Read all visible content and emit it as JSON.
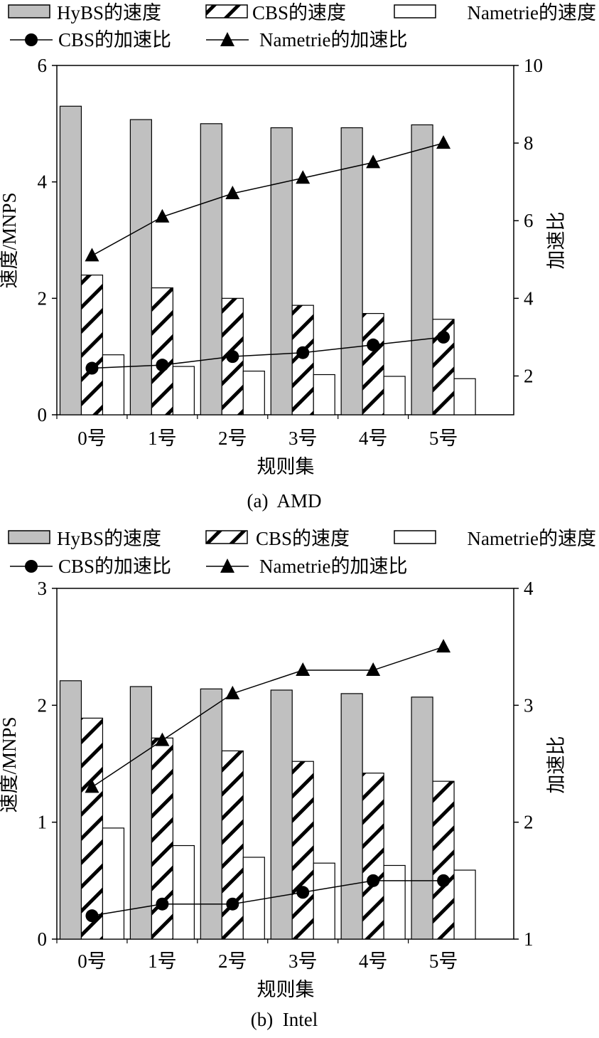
{
  "chart_data": [
    {
      "type": "bar",
      "caption": "(a)  AMD",
      "xlabel": "规则集",
      "ylabel": "速度/MNPS",
      "y2label": "加速比",
      "categories": [
        "0号",
        "1号",
        "2号",
        "3号",
        "4号",
        "5号"
      ],
      "ylim": [
        0,
        6
      ],
      "yticks": [
        "0",
        "2",
        "4",
        "6"
      ],
      "y2lim": [
        1,
        10
      ],
      "y2ticks": [
        "2",
        "4",
        "6",
        "8",
        "10"
      ],
      "legend": {
        "hybs_speed": "HyBS的速度",
        "cbs_speed": "CBS的速度",
        "nametrie_speed": "Nametrie的速度",
        "cbs_ratio": "CBS的加速比",
        "nametrie_ratio": "Nametrie的加速比"
      },
      "series": [
        {
          "name": "HyBS的速度",
          "style": "gray-bar",
          "axis": "left",
          "values": [
            5.3,
            5.07,
            5.0,
            4.93,
            4.93,
            4.98
          ]
        },
        {
          "name": "CBS的速度",
          "style": "hatched-bar",
          "axis": "left",
          "values": [
            2.4,
            2.18,
            2.0,
            1.88,
            1.74,
            1.64
          ]
        },
        {
          "name": "Nametrie的速度",
          "style": "white-bar",
          "axis": "left",
          "values": [
            1.03,
            0.83,
            0.75,
            0.69,
            0.66,
            0.62
          ]
        },
        {
          "name": "CBS的加速比",
          "style": "circle-line",
          "axis": "right",
          "values": [
            2.2,
            2.28,
            2.5,
            2.6,
            2.8,
            3.0
          ]
        },
        {
          "name": "Nametrie的加速比",
          "style": "triangle-line",
          "axis": "right",
          "values": [
            5.1,
            6.1,
            6.7,
            7.1,
            7.5,
            8.0
          ]
        }
      ]
    },
    {
      "type": "bar",
      "caption": "(b)  Intel",
      "xlabel": "规则集",
      "ylabel": "速度/MNPS",
      "y2label": "加速比",
      "categories": [
        "0号",
        "1号",
        "2号",
        "3号",
        "4号",
        "5号"
      ],
      "ylim": [
        0,
        3
      ],
      "yticks": [
        "0",
        "1",
        "2",
        "3"
      ],
      "y2lim": [
        1,
        4
      ],
      "y2ticks": [
        "1",
        "2",
        "3",
        "4"
      ],
      "legend": {
        "hybs_speed": "HyBS的速度",
        "cbs_speed": "CBS的速度",
        "nametrie_speed": "Nametrie的速度",
        "cbs_ratio": "CBS的加速比",
        "nametrie_ratio": "Nametrie的加速比"
      },
      "series": [
        {
          "name": "HyBS的速度",
          "style": "gray-bar",
          "axis": "left",
          "values": [
            2.21,
            2.16,
            2.14,
            2.13,
            2.1,
            2.07
          ]
        },
        {
          "name": "CBS的速度",
          "style": "hatched-bar",
          "axis": "left",
          "values": [
            1.89,
            1.72,
            1.61,
            1.52,
            1.42,
            1.35
          ]
        },
        {
          "name": "Nametrie的速度",
          "style": "white-bar",
          "axis": "left",
          "values": [
            0.95,
            0.8,
            0.7,
            0.65,
            0.63,
            0.59
          ]
        },
        {
          "name": "CBS的加速比",
          "style": "circle-line",
          "axis": "right",
          "values": [
            1.2,
            1.3,
            1.3,
            1.4,
            1.5,
            1.5
          ]
        },
        {
          "name": "Nametrie的加速比",
          "style": "triangle-line",
          "axis": "right",
          "values": [
            2.3,
            2.7,
            3.1,
            3.3,
            3.3,
            3.5
          ]
        }
      ]
    }
  ]
}
